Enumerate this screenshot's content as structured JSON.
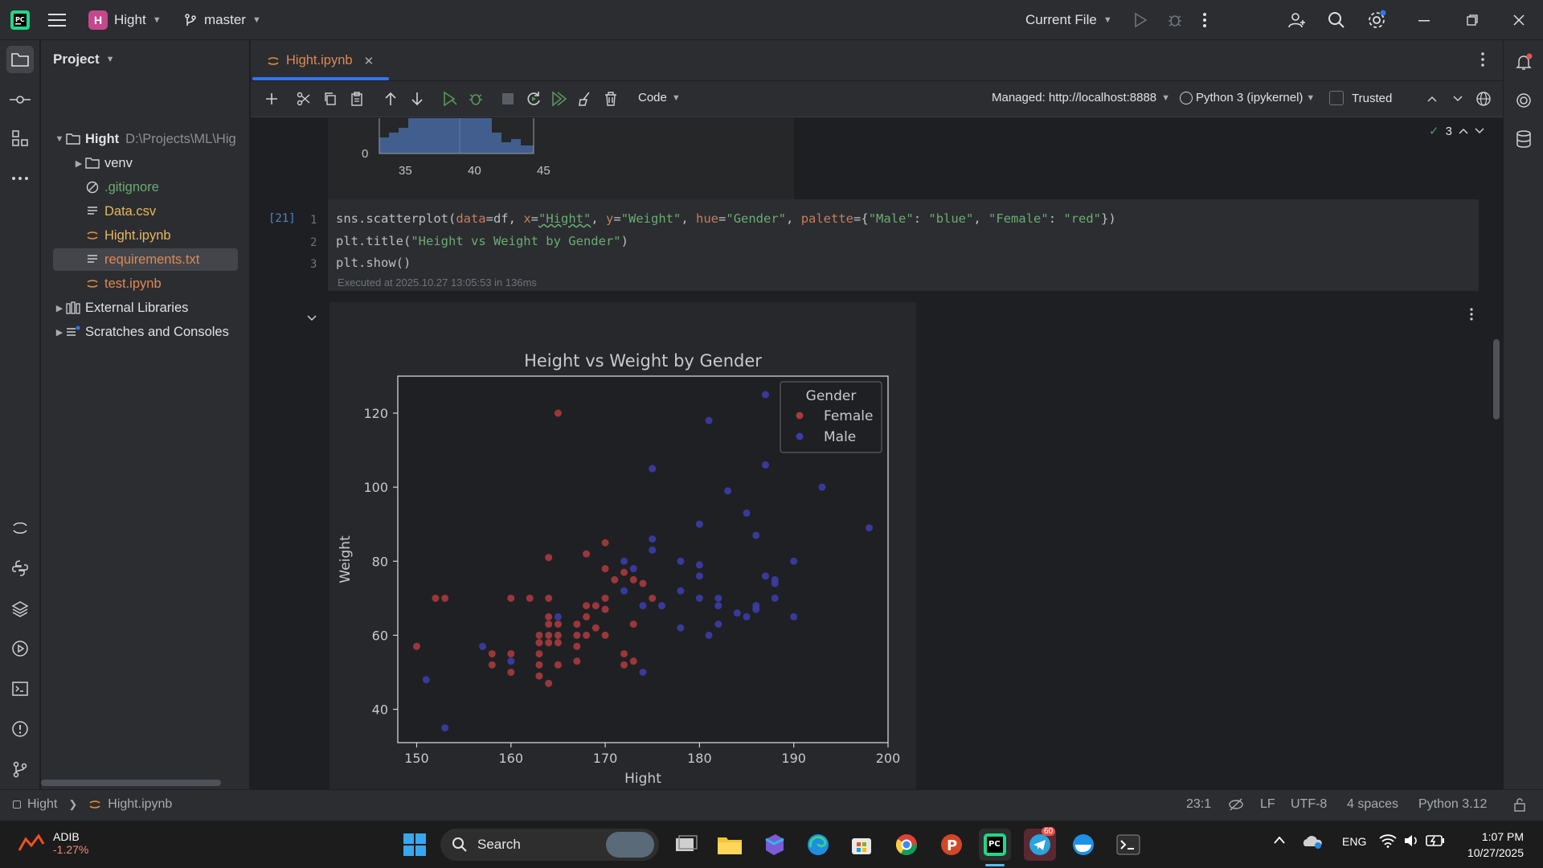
{
  "titlebar": {
    "project_badge": "H",
    "project_name": "Hight",
    "branch": "master",
    "run_config": "Current File",
    "icons": [
      "pycharm-logo-icon",
      "hamburger-menu-icon",
      "branch-icon",
      "run-icon",
      "debug-icon",
      "more-vert-icon",
      "add-user-icon",
      "search-icon",
      "settings-icon",
      "minimize-icon",
      "restore-icon",
      "close-icon"
    ]
  },
  "project_panel": {
    "title": "Project",
    "root": {
      "name": "Hight",
      "path": "D:\\Projects\\ML\\Hig"
    },
    "items": [
      {
        "label": "venv",
        "type": "folder"
      },
      {
        "label": ".gitignore",
        "type": "ignore"
      },
      {
        "label": "Data.csv",
        "type": "text"
      },
      {
        "label": "Hight.ipynb",
        "type": "notebook"
      },
      {
        "label": "requirements.txt",
        "type": "text"
      },
      {
        "label": "test.ipynb",
        "type": "notebook"
      },
      {
        "label": "External Libraries",
        "type": "library"
      },
      {
        "label": "Scratches and Consoles",
        "type": "scratch"
      }
    ]
  },
  "editor": {
    "tab_label": "Hight.ipynb",
    "toolbar": {
      "cell_type": "Code",
      "server": "Managed: http://localhost:8888",
      "kernel": "Python 3 (ipykernel)",
      "trusted_label": "Trusted",
      "checks": "3"
    },
    "prev_output": {
      "ticks": [
        "0",
        "35",
        "40",
        "45"
      ]
    },
    "cell": {
      "exec_count": "[21]",
      "line_numbers": [
        "1",
        "2",
        "3"
      ],
      "executed_info": "Executed at 2025.10.27 13:05:53 in 136ms",
      "code": {
        "l1_a": "sns.scatterplot(",
        "l1_b": "data",
        "l1_c": "=df, ",
        "l1_d": "x",
        "l1_e": "=",
        "l1_f": "\"Hight\"",
        "l1_g": ", ",
        "l1_h": "y",
        "l1_i": "=",
        "l1_j": "\"Weight\"",
        "l1_k": ", ",
        "l1_l": "hue",
        "l1_m": "=",
        "l1_n": "\"Gender\"",
        "l1_o": ", ",
        "l1_p": "palette",
        "l1_q": "={",
        "l1_r": "\"Male\"",
        "l1_s": ": ",
        "l1_t": "\"blue\"",
        "l1_u": ", ",
        "l1_v": "\"Female\"",
        "l1_w": ": ",
        "l1_x": "\"red\"",
        "l1_y": "})",
        "l2_a": "plt.title(",
        "l2_b": "\"Height vs Weight by Gender\"",
        "l2_c": ")",
        "l3": "plt.show()"
      }
    }
  },
  "chart_data": {
    "type": "scatter",
    "title": "Height vs Weight by Gender",
    "xlabel": "Hight",
    "ylabel": "Weight",
    "xlim": [
      148,
      200
    ],
    "ylim": [
      31,
      130
    ],
    "xticks": [
      150,
      160,
      170,
      180,
      190,
      200
    ],
    "yticks": [
      40,
      60,
      80,
      100,
      120
    ],
    "legend": {
      "title": "Gender",
      "placement": "top-right"
    },
    "series": [
      {
        "name": "Female",
        "color": "#a83a3d",
        "points": [
          [
            150,
            57
          ],
          [
            152,
            70
          ],
          [
            153,
            70
          ],
          [
            158,
            55
          ],
          [
            158,
            52
          ],
          [
            160,
            70
          ],
          [
            160,
            55
          ],
          [
            160,
            50
          ],
          [
            162,
            70
          ],
          [
            163,
            60
          ],
          [
            163,
            58
          ],
          [
            163,
            55
          ],
          [
            163,
            52
          ],
          [
            163,
            49
          ],
          [
            164,
            81
          ],
          [
            164,
            70
          ],
          [
            164,
            65
          ],
          [
            164,
            63
          ],
          [
            164,
            60
          ],
          [
            164,
            58
          ],
          [
            164,
            47
          ],
          [
            165,
            120
          ],
          [
            165,
            63
          ],
          [
            165,
            60
          ],
          [
            165,
            58
          ],
          [
            165,
            52
          ],
          [
            167,
            63
          ],
          [
            167,
            60
          ],
          [
            167,
            57
          ],
          [
            167,
            53
          ],
          [
            168,
            82
          ],
          [
            168,
            68
          ],
          [
            168,
            65
          ],
          [
            168,
            60
          ],
          [
            169,
            68
          ],
          [
            169,
            62
          ],
          [
            170,
            85
          ],
          [
            170,
            78
          ],
          [
            170,
            70
          ],
          [
            170,
            67
          ],
          [
            170,
            60
          ],
          [
            171,
            75
          ],
          [
            172,
            77
          ],
          [
            172,
            55
          ],
          [
            172,
            52
          ],
          [
            173,
            75
          ],
          [
            173,
            63
          ],
          [
            173,
            53
          ],
          [
            174,
            74
          ],
          [
            175,
            70
          ]
        ]
      },
      {
        "name": "Male",
        "color": "#3b3da8",
        "points": [
          [
            151,
            48
          ],
          [
            153,
            35
          ],
          [
            157,
            57
          ],
          [
            160,
            53
          ],
          [
            165,
            65
          ],
          [
            172,
            80
          ],
          [
            172,
            72
          ],
          [
            173,
            78
          ],
          [
            174,
            68
          ],
          [
            174,
            50
          ],
          [
            175,
            105
          ],
          [
            175,
            86
          ],
          [
            175,
            83
          ],
          [
            176,
            68
          ],
          [
            178,
            80
          ],
          [
            178,
            72
          ],
          [
            178,
            62
          ],
          [
            180,
            90
          ],
          [
            180,
            79
          ],
          [
            180,
            76
          ],
          [
            180,
            70
          ],
          [
            181,
            118
          ],
          [
            181,
            60
          ],
          [
            182,
            70
          ],
          [
            182,
            68
          ],
          [
            182,
            63
          ],
          [
            183,
            99
          ],
          [
            184,
            66
          ],
          [
            185,
            93
          ],
          [
            185,
            65
          ],
          [
            186,
            87
          ],
          [
            186,
            68
          ],
          [
            186,
            67
          ],
          [
            187,
            125
          ],
          [
            187,
            106
          ],
          [
            187,
            76
          ],
          [
            188,
            75
          ],
          [
            188,
            74
          ],
          [
            188,
            70
          ],
          [
            190,
            80
          ],
          [
            190,
            65
          ],
          [
            193,
            100
          ],
          [
            198,
            89
          ]
        ]
      }
    ]
  },
  "statusbar": {
    "breadcrumb_project": "Hight",
    "breadcrumb_file": "Hight.ipynb",
    "position": "23:1",
    "line_sep": "LF",
    "encoding": "UTF-8",
    "indent": "4 spaces",
    "interpreter": "Python 3.12"
  },
  "taskbar": {
    "stock_name": "ADIB",
    "stock_change": "-1.27%",
    "search_label": "Search",
    "telegram_badge": "60",
    "lang": "ENG",
    "time": "1:07 PM",
    "date": "10/27/2025"
  }
}
